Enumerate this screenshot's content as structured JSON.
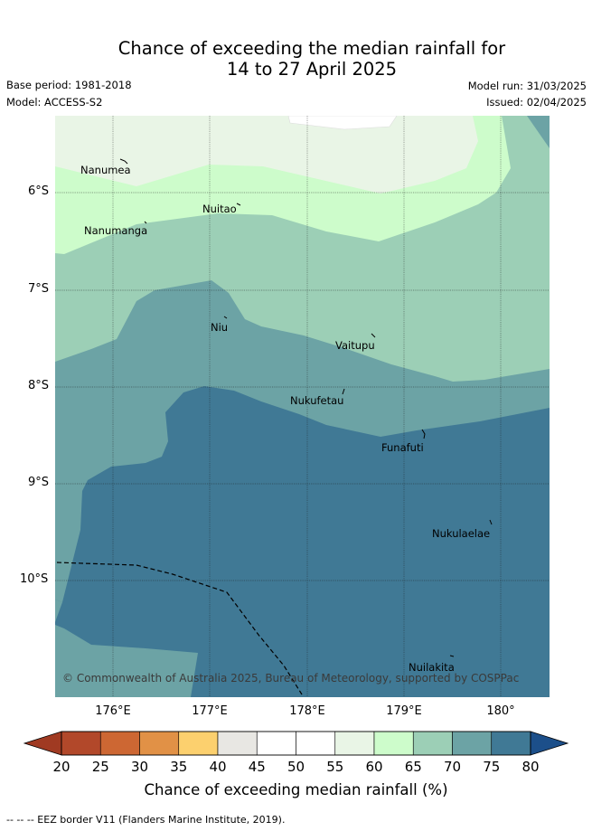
{
  "title_line1": "Chance of exceeding the median rainfall for",
  "title_line2": "14 to 27 April 2025",
  "base_period": "Base period: 1981-2018",
  "model": "Model: ACCESS-S2",
  "model_run": "Model run: 31/03/2025",
  "issued": "Issued: 02/04/2025",
  "map": {
    "lat_labels": [
      "6°S",
      "7°S",
      "8°S",
      "9°S",
      "10°S"
    ],
    "lon_labels": [
      "176°E",
      "177°E",
      "178°E",
      "179°E",
      "180°"
    ],
    "places": [
      "Nanumea",
      "Nuitao",
      "Nanumanga",
      "Niu",
      "Vaitupu",
      "Nukufetau",
      "Funafuti",
      "Nukulaelae",
      "Nuilakita"
    ],
    "copyright": "© Commonwealth of Australia 2025, Bureau of Meteorology, supported by COSPPac",
    "colors": {
      "c55_60": "#e9f5e6",
      "c60_65": "#cdfccb",
      "c65_70": "#9ccfb6",
      "c70_75": "#6ca3a5",
      "c75_80": "#407995",
      "c50_55": "#ffffff"
    }
  },
  "colorbar": {
    "ticks": [
      "20",
      "25",
      "30",
      "35",
      "40",
      "45",
      "50",
      "55",
      "60",
      "65",
      "70",
      "75",
      "80"
    ],
    "colors": [
      "#b2482a",
      "#cd6733",
      "#e19146",
      "#fcd06e",
      "#e8e7e3",
      "#ffffff",
      "#ffffff",
      "#e9f5e6",
      "#cdfccb",
      "#9ccfb6",
      "#6ca3a5",
      "#407995"
    ],
    "low_extend_color": "#a03a22",
    "high_extend_color": "#1c4f8a",
    "label": "Chance of exceeding median rainfall (%)"
  },
  "footer": "-- -- -- EEZ border V11 (Flanders Marine Institute, 2019)."
}
